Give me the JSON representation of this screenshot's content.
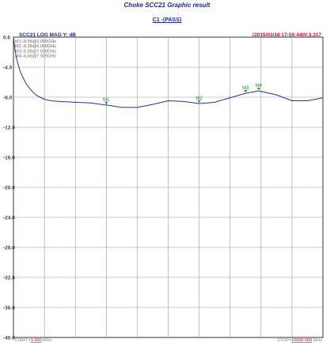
{
  "page": {
    "title": "Choke SCC21 Graphic result",
    "subtitle": "C1 -(PASS)"
  },
  "chart_data": {
    "type": "line",
    "header_left": "SCC21  LOG MAG    Y: dB",
    "header_right": "(2015/03/18 17:59:44)V:3.317",
    "ylim": [
      -40.0,
      0.6
    ],
    "xlim": [
      1,
      10000
    ],
    "yticks": [
      "0.6",
      "-4.0",
      "-8.0",
      "-12.0",
      "-16.0",
      "-20.0",
      "-24.0",
      "-28.0",
      "-32.0",
      "-36.0",
      "-40.0"
    ],
    "grid": true,
    "markers": [
      {
        "name": "M1",
        "text": "M1:-8.58@3.000GHz",
        "x": 3000,
        "y": -8.58
      },
      {
        "name": "M2",
        "text": "M2:-8.38@6.000GHz",
        "x": 6000,
        "y": -8.38
      },
      {
        "name": "M3",
        "text": "M3:-6.99@7.500GHz",
        "x": 7500,
        "y": -6.99
      },
      {
        "name": "M4",
        "text": "M4:-6.66@7.925GHz",
        "x": 7925,
        "y": -6.66
      }
    ],
    "series": [
      {
        "x": [
          1,
          50,
          100,
          200,
          300,
          400,
          500,
          600,
          700,
          800,
          1000,
          1200,
          1500,
          2000,
          2500,
          3000,
          3500,
          4000,
          4500,
          5000,
          5500,
          6000,
          6500,
          7000,
          7500,
          7925,
          8500,
          9000,
          9500,
          10000
        ],
        "y": [
          0.6,
          -1.1,
          -2.3,
          -3.8,
          -4.8,
          -5.6,
          -6.2,
          -6.7,
          -7.1,
          -7.4,
          -7.8,
          -8.0,
          -8.1,
          -8.2,
          -8.3,
          -8.58,
          -8.9,
          -8.9,
          -8.5,
          -8.0,
          -8.1,
          -8.38,
          -8.2,
          -7.6,
          -6.99,
          -6.66,
          -7.2,
          -8.0,
          -8.0,
          -7.6
        ],
        "color": "#2a2f9e"
      }
    ],
    "footer": {
      "start_label": "START=",
      "start_value": "1.000",
      "start_unit": " MHz",
      "stop_label": "STOP=",
      "stop_value": "10000.000",
      "stop_unit": " MHz"
    }
  }
}
